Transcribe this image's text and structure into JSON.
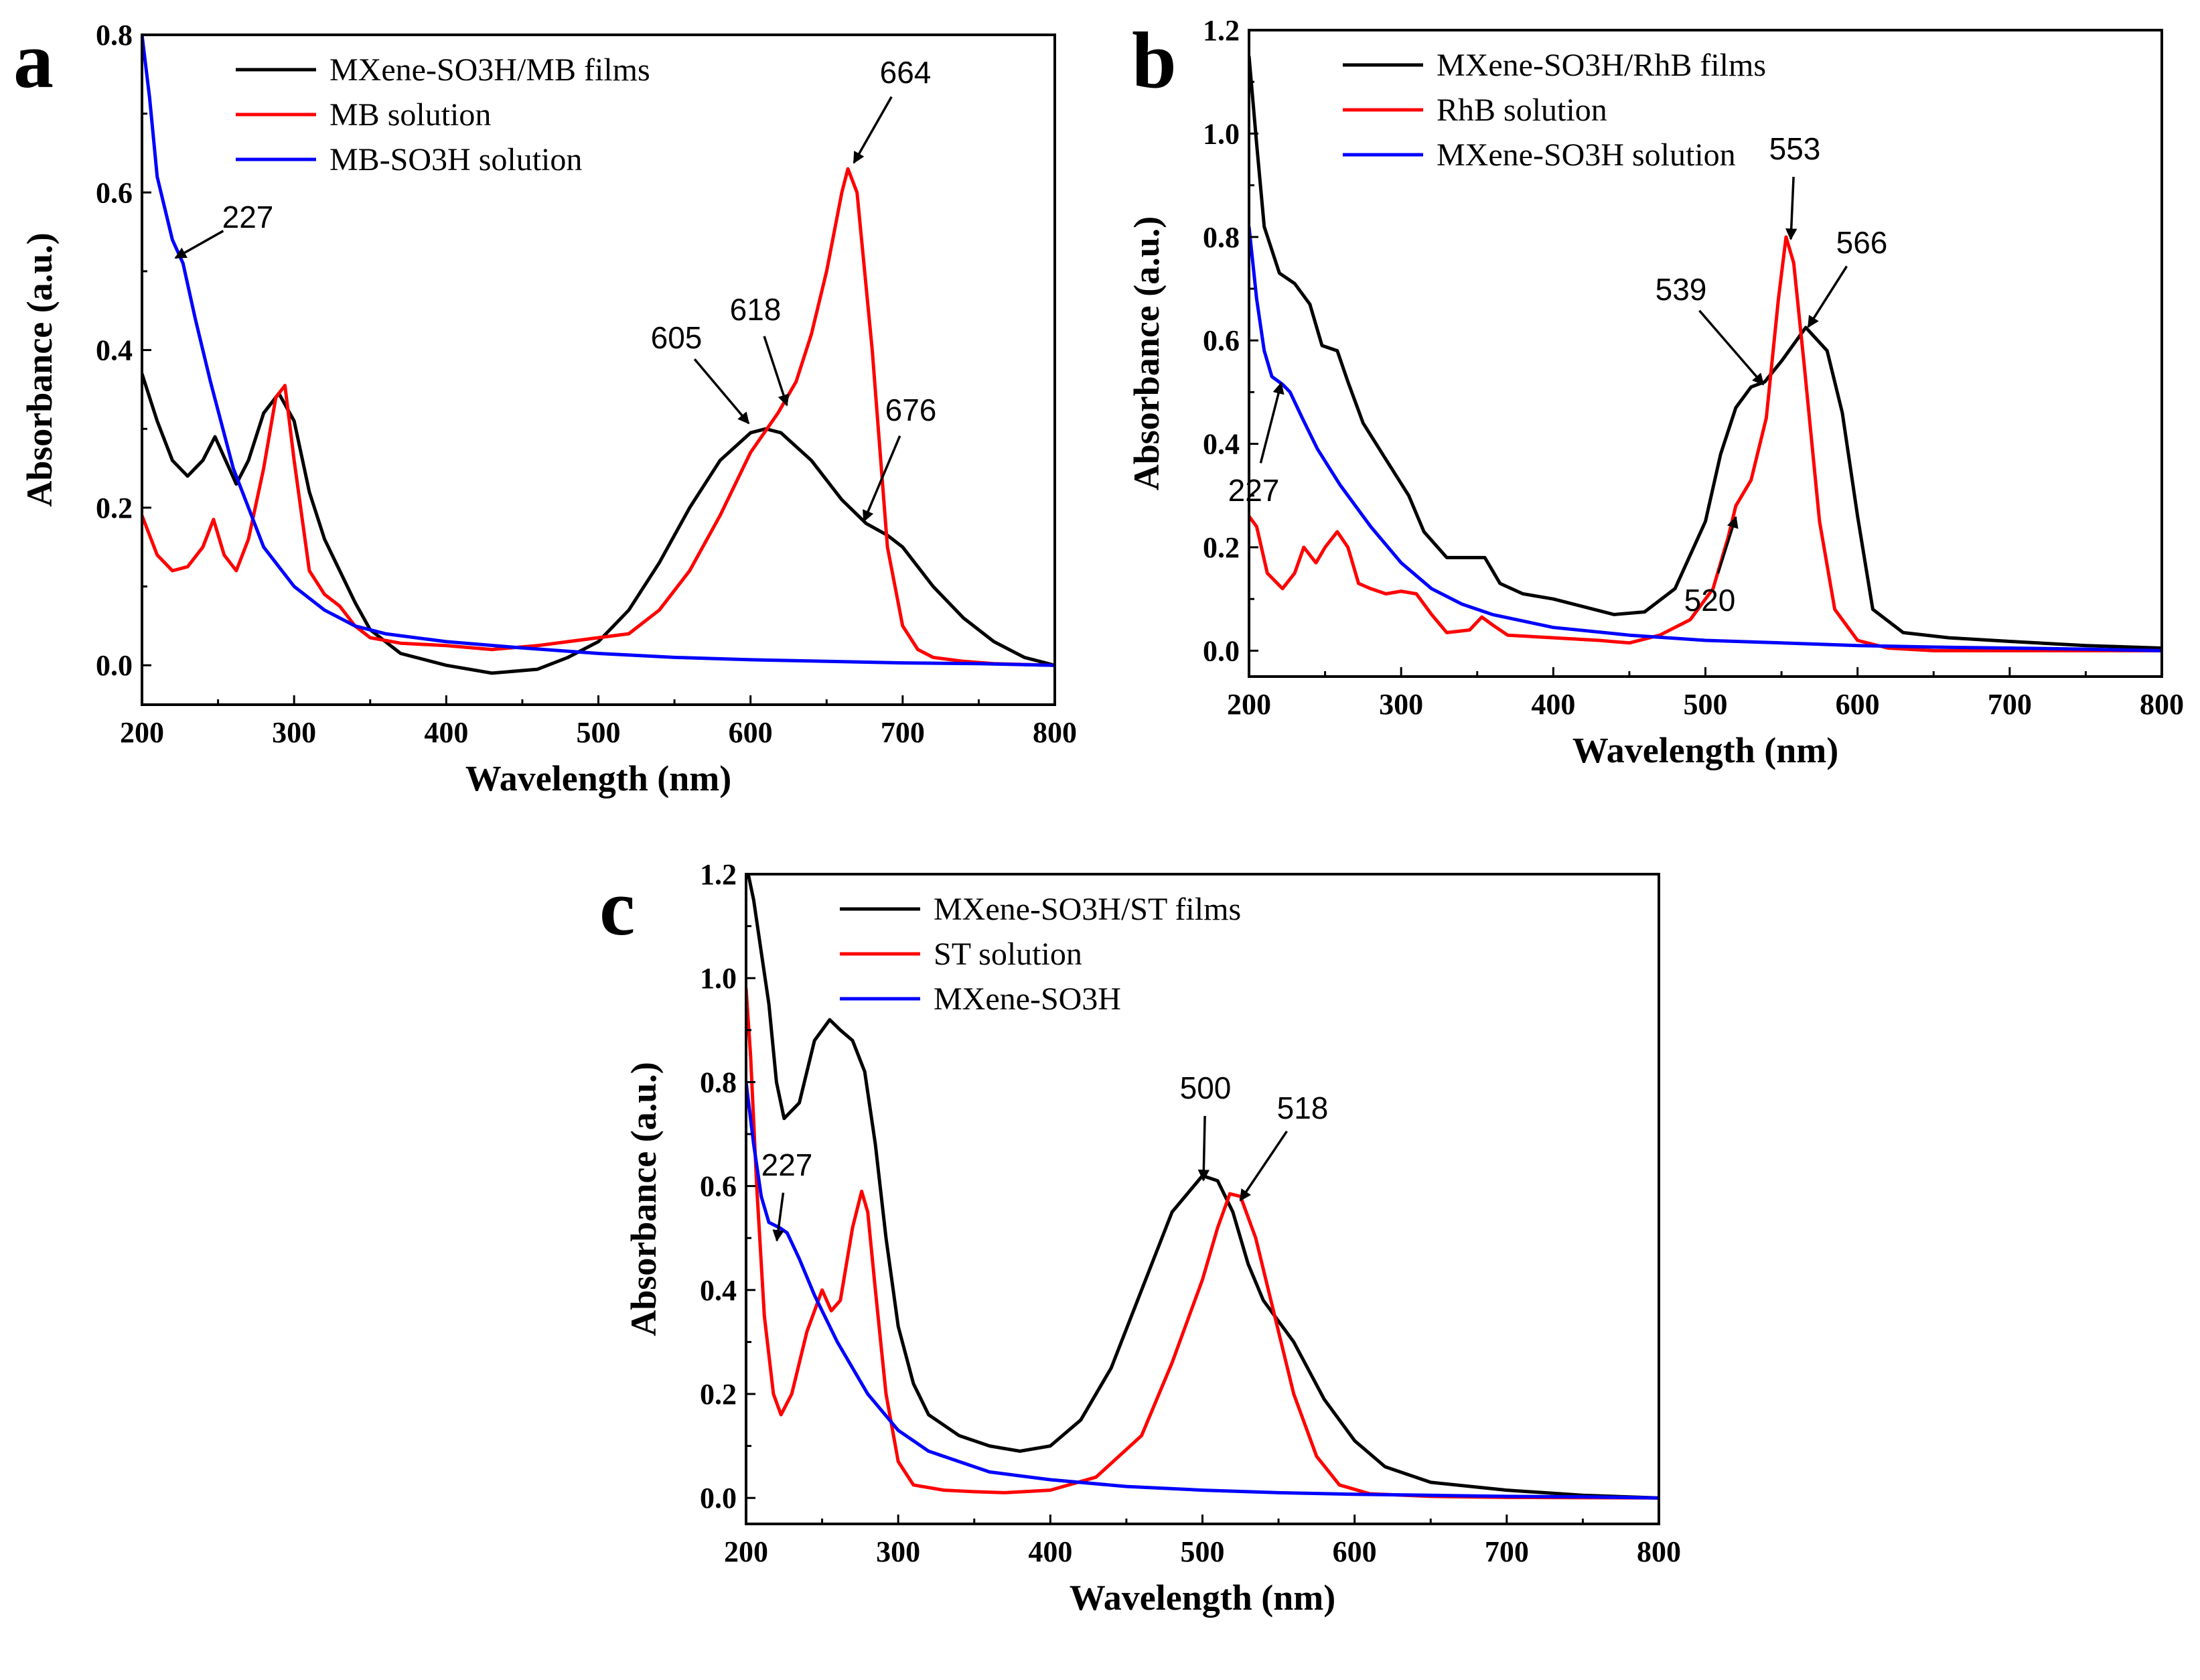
{
  "chart_data": [
    {
      "type": "line",
      "panel_label": "a",
      "xlabel": "Wavelength (nm)",
      "ylabel": "Absorbance (a.u.)",
      "xlim": [
        200,
        800
      ],
      "ylim": [
        -0.05,
        0.8
      ],
      "xticks": [
        200,
        300,
        400,
        500,
        600,
        700,
        800
      ],
      "yticks": [
        0.0,
        0.2,
        0.4,
        0.6,
        0.8
      ],
      "ytick_labels": [
        "0.0",
        "0.2",
        "0.4",
        "0.6",
        "0.8"
      ],
      "legend_position": "top-left",
      "series": [
        {
          "name": "MXene-SO3H/MB films",
          "color": "#000000",
          "x": [
            200,
            210,
            220,
            230,
            240,
            248,
            255,
            262,
            270,
            280,
            290,
            300,
            310,
            320,
            330,
            340,
            350,
            370,
            400,
            430,
            460,
            480,
            500,
            520,
            540,
            560,
            580,
            600,
            610,
            620,
            640,
            660,
            676,
            690,
            700,
            720,
            740,
            760,
            780,
            800
          ],
          "y": [
            0.37,
            0.31,
            0.26,
            0.24,
            0.26,
            0.29,
            0.26,
            0.23,
            0.26,
            0.32,
            0.345,
            0.31,
            0.22,
            0.16,
            0.12,
            0.08,
            0.045,
            0.015,
            0.0,
            -0.01,
            -0.005,
            0.01,
            0.03,
            0.07,
            0.13,
            0.2,
            0.26,
            0.295,
            0.3,
            0.295,
            0.26,
            0.21,
            0.18,
            0.165,
            0.15,
            0.1,
            0.06,
            0.03,
            0.01,
            0.0
          ]
        },
        {
          "name": "MB solution",
          "color": "#ff0000",
          "x": [
            200,
            210,
            220,
            230,
            240,
            247,
            254,
            262,
            270,
            280,
            288,
            294,
            300,
            310,
            320,
            330,
            340,
            350,
            370,
            400,
            430,
            460,
            480,
            500,
            520,
            540,
            560,
            580,
            600,
            618,
            630,
            640,
            650,
            660,
            664,
            670,
            680,
            690,
            700,
            710,
            720,
            740,
            760,
            800
          ],
          "y": [
            0.19,
            0.14,
            0.12,
            0.125,
            0.15,
            0.185,
            0.14,
            0.12,
            0.16,
            0.25,
            0.34,
            0.355,
            0.26,
            0.12,
            0.09,
            0.075,
            0.05,
            0.035,
            0.028,
            0.025,
            0.02,
            0.025,
            0.03,
            0.035,
            0.04,
            0.07,
            0.12,
            0.19,
            0.27,
            0.32,
            0.36,
            0.42,
            0.5,
            0.6,
            0.63,
            0.6,
            0.4,
            0.15,
            0.05,
            0.02,
            0.01,
            0.005,
            0.002,
            0.0
          ]
        },
        {
          "name": "MB-SO3H solution",
          "color": "#0000ff",
          "x": [
            200,
            205,
            210,
            220,
            227,
            235,
            245,
            260,
            280,
            300,
            320,
            340,
            360,
            400,
            450,
            500,
            550,
            600,
            650,
            700,
            750,
            800
          ],
          "y": [
            0.8,
            0.72,
            0.62,
            0.54,
            0.51,
            0.44,
            0.36,
            0.25,
            0.15,
            0.1,
            0.07,
            0.05,
            0.04,
            0.03,
            0.022,
            0.015,
            0.01,
            0.007,
            0.005,
            0.003,
            0.002,
            0.0
          ]
        }
      ],
      "annotations": [
        {
          "text": "227",
          "x": 227,
          "y": 0.51
        },
        {
          "text": "605",
          "x": 605,
          "y": 0.3
        },
        {
          "text": "618",
          "x": 618,
          "y": 0.32
        },
        {
          "text": "664",
          "x": 664,
          "y": 0.63
        },
        {
          "text": "676",
          "x": 676,
          "y": 0.18
        }
      ]
    },
    {
      "type": "line",
      "panel_label": "b",
      "xlabel": "Wavelength (nm)",
      "ylabel": "Absorbance (a.u.)",
      "xlim": [
        200,
        800
      ],
      "ylim": [
        -0.05,
        1.2
      ],
      "xticks": [
        200,
        300,
        400,
        500,
        600,
        700,
        800
      ],
      "yticks": [
        0.0,
        0.2,
        0.4,
        0.6,
        0.8,
        1.0,
        1.2
      ],
      "ytick_labels": [
        "0.0",
        "0.2",
        "0.4",
        "0.6",
        "0.8",
        "1.0",
        "1.2"
      ],
      "legend_position": "top-left",
      "series": [
        {
          "name": "MXene-SO3H/RhB films",
          "color": "#000000",
          "x": [
            200,
            205,
            210,
            220,
            230,
            240,
            248,
            258,
            265,
            275,
            290,
            305,
            315,
            330,
            345,
            355,
            365,
            380,
            400,
            420,
            440,
            460,
            480,
            500,
            510,
            520,
            530,
            539,
            550,
            566,
            580,
            590,
            600,
            610,
            630,
            660,
            700,
            750,
            800
          ],
          "y": [
            1.15,
            0.98,
            0.82,
            0.73,
            0.71,
            0.67,
            0.59,
            0.58,
            0.52,
            0.44,
            0.37,
            0.3,
            0.23,
            0.18,
            0.18,
            0.18,
            0.13,
            0.11,
            0.1,
            0.085,
            0.07,
            0.075,
            0.12,
            0.25,
            0.38,
            0.47,
            0.51,
            0.52,
            0.56,
            0.625,
            0.58,
            0.46,
            0.26,
            0.08,
            0.035,
            0.025,
            0.018,
            0.01,
            0.005
          ]
        },
        {
          "name": "RhB solution",
          "color": "#ff0000",
          "x": [
            200,
            205,
            212,
            222,
            230,
            236,
            244,
            250,
            258,
            265,
            272,
            280,
            290,
            300,
            310,
            320,
            330,
            345,
            353,
            360,
            370,
            400,
            430,
            450,
            470,
            490,
            505,
            515,
            520,
            530,
            540,
            548,
            553,
            558,
            565,
            575,
            585,
            600,
            620,
            650,
            700,
            800
          ],
          "y": [
            0.26,
            0.24,
            0.15,
            0.12,
            0.15,
            0.2,
            0.17,
            0.2,
            0.23,
            0.2,
            0.13,
            0.12,
            0.11,
            0.115,
            0.11,
            0.07,
            0.035,
            0.04,
            0.065,
            0.05,
            0.03,
            0.025,
            0.02,
            0.015,
            0.03,
            0.06,
            0.12,
            0.22,
            0.28,
            0.33,
            0.45,
            0.68,
            0.8,
            0.75,
            0.55,
            0.25,
            0.08,
            0.02,
            0.005,
            0.0,
            0.0,
            0.0
          ]
        },
        {
          "name": "MXene-SO3H solution",
          "color": "#0000ff",
          "x": [
            200,
            205,
            210,
            215,
            222,
            227,
            235,
            245,
            260,
            280,
            300,
            320,
            340,
            360,
            400,
            450,
            500,
            550,
            600,
            650,
            700,
            750,
            800
          ],
          "y": [
            0.82,
            0.68,
            0.58,
            0.53,
            0.515,
            0.5,
            0.45,
            0.39,
            0.32,
            0.24,
            0.17,
            0.12,
            0.09,
            0.07,
            0.045,
            0.03,
            0.02,
            0.015,
            0.01,
            0.007,
            0.005,
            0.003,
            0.0
          ]
        }
      ],
      "annotations": [
        {
          "text": "227",
          "x": 227,
          "y": 0.51
        },
        {
          "text": "520",
          "x": 520,
          "y": 0.28
        },
        {
          "text": "539",
          "x": 539,
          "y": 0.52
        },
        {
          "text": "553",
          "x": 553,
          "y": 0.8
        },
        {
          "text": "566",
          "x": 566,
          "y": 0.63
        }
      ]
    },
    {
      "type": "line",
      "panel_label": "c",
      "xlabel": "Wavelength (nm)",
      "ylabel": "Absorbance (a.u.)",
      "xlim": [
        200,
        800
      ],
      "ylim": [
        -0.05,
        1.2
      ],
      "xticks": [
        200,
        300,
        400,
        500,
        600,
        700,
        800
      ],
      "yticks": [
        0.0,
        0.2,
        0.4,
        0.6,
        0.8,
        1.0,
        1.2
      ],
      "ytick_labels": [
        "0.0",
        "0.2",
        "0.4",
        "0.6",
        "0.8",
        "1.0",
        "1.2"
      ],
      "legend_position": "top-left",
      "series": [
        {
          "name": "MXene-SO3H/ST films",
          "color": "#000000",
          "x": [
            200,
            205,
            210,
            215,
            220,
            225,
            235,
            245,
            255,
            262,
            270,
            278,
            285,
            292,
            300,
            310,
            320,
            340,
            360,
            380,
            400,
            420,
            440,
            460,
            480,
            500,
            510,
            520,
            530,
            540,
            560,
            580,
            600,
            620,
            650,
            700,
            750,
            800
          ],
          "y": [
            1.22,
            1.15,
            1.05,
            0.95,
            0.8,
            0.73,
            0.76,
            0.88,
            0.92,
            0.9,
            0.88,
            0.82,
            0.68,
            0.5,
            0.33,
            0.22,
            0.16,
            0.12,
            0.1,
            0.09,
            0.1,
            0.15,
            0.25,
            0.4,
            0.55,
            0.62,
            0.61,
            0.55,
            0.45,
            0.38,
            0.3,
            0.19,
            0.11,
            0.06,
            0.03,
            0.015,
            0.005,
            0.0
          ]
        },
        {
          "name": "ST solution",
          "color": "#ff0000",
          "x": [
            200,
            203,
            207,
            212,
            218,
            223,
            230,
            240,
            250,
            256,
            262,
            270,
            276,
            280,
            285,
            292,
            300,
            310,
            330,
            350,
            370,
            400,
            430,
            460,
            480,
            500,
            510,
            518,
            525,
            535,
            545,
            560,
            575,
            590,
            610,
            650,
            700,
            800
          ],
          "y": [
            0.98,
            0.85,
            0.6,
            0.35,
            0.2,
            0.16,
            0.2,
            0.32,
            0.4,
            0.36,
            0.38,
            0.52,
            0.59,
            0.55,
            0.4,
            0.2,
            0.07,
            0.025,
            0.015,
            0.012,
            0.01,
            0.015,
            0.04,
            0.12,
            0.26,
            0.42,
            0.52,
            0.585,
            0.58,
            0.5,
            0.38,
            0.2,
            0.08,
            0.025,
            0.008,
            0.003,
            0.001,
            0.0
          ]
        },
        {
          "name": "MXene-SO3H",
          "color": "#0000ff",
          "x": [
            200,
            205,
            210,
            215,
            222,
            227,
            235,
            245,
            260,
            280,
            300,
            320,
            340,
            360,
            400,
            450,
            500,
            550,
            600,
            650,
            700,
            750,
            800
          ],
          "y": [
            0.8,
            0.68,
            0.58,
            0.53,
            0.52,
            0.51,
            0.46,
            0.39,
            0.3,
            0.2,
            0.13,
            0.09,
            0.07,
            0.05,
            0.035,
            0.022,
            0.015,
            0.01,
            0.007,
            0.005,
            0.003,
            0.002,
            0.0
          ]
        }
      ],
      "annotations": [
        {
          "text": "227",
          "x": 227,
          "y": 0.52
        },
        {
          "text": "500",
          "x": 500,
          "y": 0.62
        },
        {
          "text": "518",
          "x": 518,
          "y": 0.59
        }
      ]
    }
  ]
}
